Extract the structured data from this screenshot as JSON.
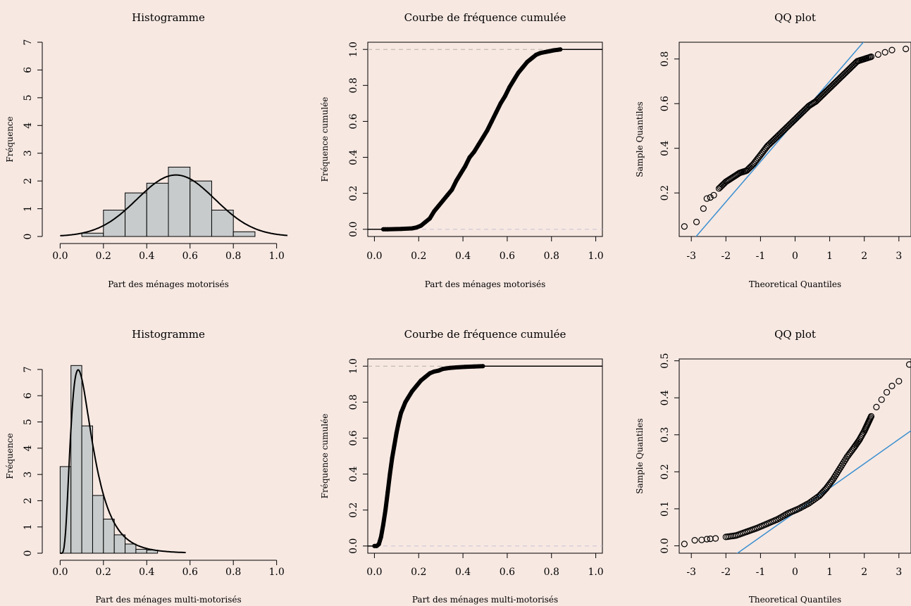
{
  "colors": {
    "background": "#f7e8e2",
    "bar_fill": "#c8cbcb",
    "refline": "#3a8fd0",
    "hline_upper": "#b5b0a5",
    "hline_lower": "#c7c1d3"
  },
  "chart_data": [
    {
      "id": "hist-motor",
      "type": "bar",
      "title": "Histogramme",
      "xlabel": "Part des ménages motorisés",
      "ylabel": "Fréquence",
      "xlim": [
        -0.05,
        1.05
      ],
      "ylim": [
        0,
        7
      ],
      "xticks": [
        "0.0",
        "0.2",
        "0.4",
        "0.6",
        "0.8",
        "1.0"
      ],
      "yticks": [
        "0",
        "1",
        "2",
        "3",
        "4",
        "5",
        "6",
        "7"
      ],
      "bins": [
        [
          0.1,
          0.2
        ],
        [
          0.2,
          0.3
        ],
        [
          0.3,
          0.4
        ],
        [
          0.4,
          0.5
        ],
        [
          0.5,
          0.6
        ],
        [
          0.6,
          0.7
        ],
        [
          0.7,
          0.8
        ],
        [
          0.8,
          0.9
        ]
      ],
      "values": [
        0.12,
        0.95,
        1.57,
        1.92,
        2.5,
        2.0,
        0.95,
        0.17
      ],
      "density": {
        "kind": "normal",
        "mean": 0.535,
        "sd": 0.18,
        "xrange": [
          0.0,
          1.05
        ]
      }
    },
    {
      "id": "ecdf-motor",
      "type": "line",
      "title": "Courbe de fréquence cumulée",
      "xlabel": "Part des ménages motorisés",
      "ylabel": "Fréquence cumulée",
      "xlim": [
        -0.03,
        1.03
      ],
      "ylim": [
        -0.04,
        1.04
      ],
      "xticks": [
        "0.0",
        "0.2",
        "0.4",
        "0.6",
        "0.8",
        "1.0"
      ],
      "yticks": [
        "0.0",
        "0.2",
        "0.4",
        "0.6",
        "0.8",
        "1.0"
      ],
      "x": [
        0.04,
        0.05,
        0.06,
        0.12,
        0.17,
        0.19,
        0.21,
        0.23,
        0.25,
        0.27,
        0.29,
        0.31,
        0.33,
        0.35,
        0.37,
        0.39,
        0.41,
        0.43,
        0.45,
        0.47,
        0.49,
        0.51,
        0.53,
        0.55,
        0.57,
        0.59,
        0.61,
        0.63,
        0.65,
        0.67,
        0.69,
        0.71,
        0.73,
        0.75,
        0.77,
        0.79,
        0.81,
        0.83,
        0.84
      ],
      "y": [
        0.0,
        0.0,
        0.0,
        0.002,
        0.005,
        0.01,
        0.02,
        0.04,
        0.06,
        0.1,
        0.13,
        0.16,
        0.19,
        0.22,
        0.27,
        0.31,
        0.35,
        0.4,
        0.43,
        0.47,
        0.51,
        0.55,
        0.6,
        0.65,
        0.7,
        0.74,
        0.79,
        0.83,
        0.87,
        0.9,
        0.93,
        0.95,
        0.97,
        0.98,
        0.985,
        0.99,
        0.995,
        0.998,
        1.0
      ]
    },
    {
      "id": "qq-motor",
      "type": "scatter",
      "title": "QQ plot",
      "xlabel": "Theoretical Quantiles",
      "ylabel": "Sample Quantiles",
      "xlim": [
        -3.35,
        3.35
      ],
      "ylim": [
        0.005,
        0.875
      ],
      "xticks": [
        -3,
        -2,
        -1,
        0,
        1,
        2,
        3
      ],
      "yticks": [
        0.2,
        0.4,
        0.6,
        0.8
      ],
      "ytick_labels": [
        "0.2",
        "0.4",
        "0.6",
        "0.8"
      ],
      "qq_points": [
        [
          -3.2,
          0.05
        ],
        [
          -2.85,
          0.07
        ],
        [
          -2.65,
          0.13
        ],
        [
          -2.55,
          0.175
        ],
        [
          -2.45,
          0.18
        ],
        [
          -2.35,
          0.19
        ],
        [
          -2.2,
          0.22
        ],
        [
          -2.0,
          0.25
        ],
        [
          -1.8,
          0.27
        ],
        [
          -1.6,
          0.29
        ],
        [
          -1.4,
          0.3
        ],
        [
          -1.2,
          0.33
        ],
        [
          -1.0,
          0.37
        ],
        [
          -0.8,
          0.41
        ],
        [
          -0.6,
          0.44
        ],
        [
          -0.4,
          0.47
        ],
        [
          -0.2,
          0.5
        ],
        [
          0.0,
          0.53
        ],
        [
          0.2,
          0.56
        ],
        [
          0.4,
          0.59
        ],
        [
          0.6,
          0.61
        ],
        [
          0.8,
          0.64
        ],
        [
          1.0,
          0.67
        ],
        [
          1.2,
          0.7
        ],
        [
          1.4,
          0.73
        ],
        [
          1.6,
          0.76
        ],
        [
          1.8,
          0.79
        ],
        [
          2.0,
          0.8
        ],
        [
          2.2,
          0.81
        ],
        [
          2.4,
          0.82
        ],
        [
          2.6,
          0.83
        ],
        [
          2.8,
          0.84
        ],
        [
          3.2,
          0.845
        ]
      ],
      "ref_line": {
        "intercept": 0.52,
        "slope": 0.18
      }
    },
    {
      "id": "hist-multi",
      "type": "bar",
      "title": "Histogramme",
      "xlabel": "Part des ménages multi-motorisés",
      "ylabel": "Fréquence",
      "xlim": [
        -0.05,
        1.05
      ],
      "ylim": [
        0,
        7.4
      ],
      "xticks": [
        "0.0",
        "0.2",
        "0.4",
        "0.6",
        "0.8",
        "1.0"
      ],
      "yticks": [
        "0",
        "1",
        "2",
        "3",
        "4",
        "5",
        "6",
        "7"
      ],
      "bins": [
        [
          0.0,
          0.05
        ],
        [
          0.05,
          0.1
        ],
        [
          0.1,
          0.15
        ],
        [
          0.15,
          0.2
        ],
        [
          0.2,
          0.25
        ],
        [
          0.25,
          0.3
        ],
        [
          0.3,
          0.35
        ],
        [
          0.35,
          0.4
        ],
        [
          0.4,
          0.45
        ]
      ],
      "values": [
        3.3,
        7.15,
        4.85,
        2.2,
        1.3,
        0.7,
        0.35,
        0.15,
        0.12
      ],
      "density": {
        "kind": "lognormal",
        "mu": -2.15,
        "sigma": 0.58,
        "xrange": [
          0.0,
          0.58
        ]
      }
    },
    {
      "id": "ecdf-multi",
      "type": "line",
      "title": "Courbe de fréquence cumulée",
      "xlabel": "Part des ménages multi-motorisés",
      "ylabel": "Fréquence cumulée",
      "xlim": [
        -0.03,
        1.03
      ],
      "ylim": [
        -0.04,
        1.04
      ],
      "xticks": [
        "0.0",
        "0.2",
        "0.4",
        "0.6",
        "0.8",
        "1.0"
      ],
      "yticks": [
        "0.0",
        "0.2",
        "0.4",
        "0.6",
        "0.8",
        "1.0"
      ],
      "x": [
        0.0,
        0.01,
        0.02,
        0.03,
        0.04,
        0.05,
        0.06,
        0.07,
        0.08,
        0.09,
        0.1,
        0.11,
        0.12,
        0.13,
        0.14,
        0.15,
        0.17,
        0.19,
        0.21,
        0.23,
        0.25,
        0.27,
        0.29,
        0.31,
        0.34,
        0.37,
        0.41,
        0.45,
        0.49
      ],
      "y": [
        0.0,
        0.0,
        0.01,
        0.05,
        0.12,
        0.2,
        0.3,
        0.4,
        0.49,
        0.56,
        0.63,
        0.69,
        0.74,
        0.77,
        0.8,
        0.82,
        0.86,
        0.89,
        0.92,
        0.94,
        0.96,
        0.97,
        0.975,
        0.985,
        0.99,
        0.993,
        0.996,
        0.998,
        1.0
      ]
    },
    {
      "id": "qq-multi",
      "type": "scatter",
      "title": "QQ plot",
      "xlabel": "Theoretical Quantiles",
      "ylabel": "Sample Quantiles",
      "xlim": [
        -3.35,
        3.35
      ],
      "ylim": [
        -0.02,
        0.505
      ],
      "xticks": [
        -3,
        -2,
        -1,
        0,
        1,
        2,
        3
      ],
      "yticks": [
        0.0,
        0.1,
        0.2,
        0.3,
        0.4,
        0.5
      ],
      "ytick_labels": [
        "0.0",
        "0.1",
        "0.2",
        "0.3",
        "0.4",
        "0.5"
      ],
      "qq_points": [
        [
          -3.2,
          0.005
        ],
        [
          -2.9,
          0.015
        ],
        [
          -2.7,
          0.016
        ],
        [
          -2.55,
          0.018
        ],
        [
          -2.45,
          0.019
        ],
        [
          -2.3,
          0.02
        ],
        [
          -2.0,
          0.024
        ],
        [
          -1.7,
          0.028
        ],
        [
          -1.4,
          0.038
        ],
        [
          -1.1,
          0.048
        ],
        [
          -0.8,
          0.06
        ],
        [
          -0.5,
          0.072
        ],
        [
          -0.2,
          0.088
        ],
        [
          0.1,
          0.1
        ],
        [
          0.4,
          0.115
        ],
        [
          0.7,
          0.135
        ],
        [
          0.9,
          0.155
        ],
        [
          1.1,
          0.18
        ],
        [
          1.3,
          0.21
        ],
        [
          1.5,
          0.24
        ],
        [
          1.7,
          0.265
        ],
        [
          1.85,
          0.285
        ],
        [
          2.0,
          0.31
        ],
        [
          2.1,
          0.33
        ],
        [
          2.2,
          0.35
        ],
        [
          2.35,
          0.375
        ],
        [
          2.5,
          0.395
        ],
        [
          2.65,
          0.415
        ],
        [
          2.8,
          0.432
        ],
        [
          3.0,
          0.445
        ],
        [
          3.3,
          0.49
        ]
      ],
      "ref_line": {
        "intercept": 0.09,
        "slope": 0.066
      }
    }
  ]
}
